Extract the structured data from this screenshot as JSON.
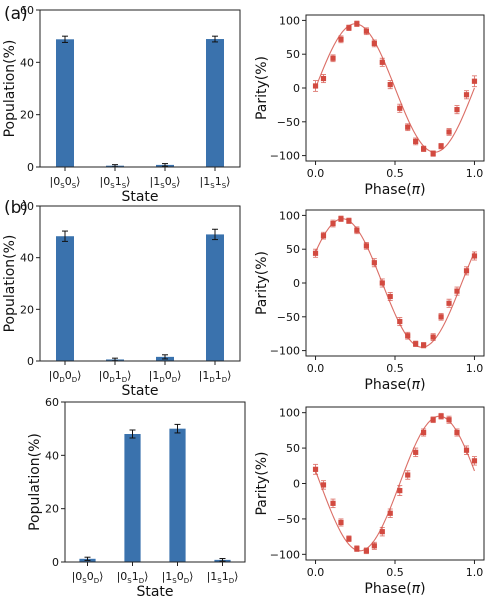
{
  "panel_labels": {
    "a": "(a)",
    "b": "(b)"
  },
  "colors": {
    "bar": "#3a72ad",
    "parity": "#d24a40",
    "axis": "#222222"
  },
  "chart_data": [
    {
      "type": "bar",
      "panel": "a",
      "categories": [
        "|0S0S⟩",
        "|0S1S⟩",
        "|1S0S⟩",
        "|1S1S⟩"
      ],
      "tick_labels": [
        {
          "base1": "0",
          "sub1": "S",
          "base2": "0",
          "sub2": "S"
        },
        {
          "base1": "0",
          "sub1": "S",
          "base2": "1",
          "sub2": "S"
        },
        {
          "base1": "1",
          "sub1": "S",
          "base2": "0",
          "sub2": "S"
        },
        {
          "base1": "1",
          "sub1": "S",
          "base2": "1",
          "sub2": "S"
        }
      ],
      "values": [
        48.8,
        0.5,
        0.8,
        48.9
      ],
      "errors": [
        1.2,
        0.4,
        0.5,
        1.1
      ],
      "xlabel": "State",
      "ylabel": "Population(%)",
      "ylim": [
        0,
        60
      ],
      "yticks": [
        0,
        20,
        40,
        60
      ]
    },
    {
      "type": "scatter",
      "panel": "a",
      "x": [
        0.0,
        0.05,
        0.11,
        0.16,
        0.21,
        0.26,
        0.32,
        0.37,
        0.42,
        0.47,
        0.53,
        0.58,
        0.63,
        0.68,
        0.74,
        0.79,
        0.84,
        0.89,
        0.95,
        1.0
      ],
      "y": [
        3,
        14,
        44,
        72,
        89,
        95,
        84,
        66,
        38,
        5,
        -30,
        -58,
        -79,
        -90,
        -97,
        -86,
        -65,
        -32,
        -10,
        10
      ],
      "errors": [
        8,
        6,
        5,
        5,
        4,
        4,
        5,
        5,
        6,
        6,
        6,
        5,
        5,
        4,
        4,
        4,
        5,
        6,
        6,
        8
      ],
      "fit": {
        "amplitude": 95,
        "phase0": 0.25,
        "offset": 0
      },
      "xlabel": "Phase(π)",
      "ylabel": "Parity(%)",
      "xlim": [
        -0.06,
        1.06
      ],
      "ylim": [
        -108,
        108
      ],
      "xticks": [
        "0.0",
        "0.5",
        "1.0"
      ],
      "yticks": [
        "100",
        "50",
        "0",
        "−50",
        "−100"
      ]
    },
    {
      "type": "bar",
      "panel": "b",
      "categories": [
        "|0D0D⟩",
        "|0D1D⟩",
        "|1D0D⟩",
        "|1D1D⟩"
      ],
      "tick_labels": [
        {
          "base1": "0",
          "sub1": "D",
          "base2": "0",
          "sub2": "D"
        },
        {
          "base1": "0",
          "sub1": "D",
          "base2": "1",
          "sub2": "D"
        },
        {
          "base1": "1",
          "sub1": "D",
          "base2": "0",
          "sub2": "D"
        },
        {
          "base1": "1",
          "sub1": "D",
          "base2": "1",
          "sub2": "D"
        }
      ],
      "values": [
        48.3,
        0.6,
        1.6,
        49.0
      ],
      "errors": [
        2.0,
        0.5,
        0.8,
        2.0
      ],
      "xlabel": "State",
      "ylabel": "Population(%)",
      "ylim": [
        0,
        60
      ],
      "yticks": [
        0,
        20,
        40,
        60
      ]
    },
    {
      "type": "scatter",
      "panel": "b",
      "x": [
        0.0,
        0.05,
        0.11,
        0.16,
        0.21,
        0.26,
        0.32,
        0.37,
        0.42,
        0.47,
        0.53,
        0.58,
        0.63,
        0.68,
        0.74,
        0.79,
        0.84,
        0.89,
        0.95,
        1.0
      ],
      "y": [
        44,
        70,
        88,
        95,
        92,
        78,
        55,
        30,
        0,
        -20,
        -57,
        -78,
        -90,
        -92,
        -80,
        -50,
        -30,
        -12,
        18,
        40
      ],
      "errors": [
        6,
        5,
        5,
        4,
        4,
        5,
        5,
        6,
        6,
        6,
        6,
        5,
        4,
        4,
        5,
        5,
        6,
        6,
        6,
        6
      ],
      "fit": {
        "amplitude": 95,
        "phase0": 0.17,
        "offset": 0
      },
      "xlabel": "Phase(π)",
      "ylabel": "Parity(%)",
      "xlim": [
        -0.06,
        1.06
      ],
      "ylim": [
        -108,
        108
      ],
      "xticks": [
        "0.0",
        "0.5",
        "1.0"
      ],
      "yticks": [
        "100",
        "50",
        "0",
        "−50",
        "−100"
      ]
    },
    {
      "type": "bar",
      "panel": "c",
      "categories": [
        "|0S0D⟩",
        "|0S1D⟩",
        "|1S0D⟩",
        "|1S1D⟩"
      ],
      "tick_labels": [
        {
          "base1": "0",
          "sub1": "S",
          "base2": "0",
          "sub2": "D"
        },
        {
          "base1": "0",
          "sub1": "S",
          "base2": "1",
          "sub2": "D"
        },
        {
          "base1": "1",
          "sub1": "S",
          "base2": "0",
          "sub2": "D"
        },
        {
          "base1": "1",
          "sub1": "S",
          "base2": "1",
          "sub2": "D"
        }
      ],
      "values": [
        1.2,
        48.0,
        50.0,
        0.8
      ],
      "errors": [
        0.6,
        1.5,
        1.6,
        0.5
      ],
      "xlabel": "State",
      "ylabel": "Population(%)",
      "ylim": [
        0,
        60
      ],
      "yticks": [
        0,
        20,
        40,
        60
      ]
    },
    {
      "type": "scatter",
      "panel": "c",
      "x": [
        0.0,
        0.05,
        0.11,
        0.16,
        0.21,
        0.26,
        0.32,
        0.37,
        0.42,
        0.47,
        0.53,
        0.58,
        0.63,
        0.68,
        0.74,
        0.79,
        0.84,
        0.89,
        0.95,
        1.0
      ],
      "y": [
        20,
        -2,
        -28,
        -55,
        -78,
        -92,
        -95,
        -88,
        -68,
        -42,
        -10,
        12,
        44,
        72,
        90,
        95,
        90,
        72,
        47,
        32
      ],
      "errors": [
        7,
        6,
        6,
        5,
        4,
        4,
        4,
        5,
        6,
        6,
        7,
        6,
        6,
        5,
        4,
        4,
        5,
        5,
        6,
        6
      ],
      "fit": {
        "amplitude": 95,
        "phase0": 0.78,
        "offset": 0
      },
      "xlabel": "Phase(π)",
      "ylabel": "Parity(%)",
      "xlim": [
        -0.06,
        1.06
      ],
      "ylim": [
        -108,
        108
      ],
      "xticks": [
        "0.0",
        "0.5",
        "1.0"
      ],
      "yticks": [
        "100",
        "50",
        "0",
        "−50",
        "−100"
      ]
    }
  ]
}
